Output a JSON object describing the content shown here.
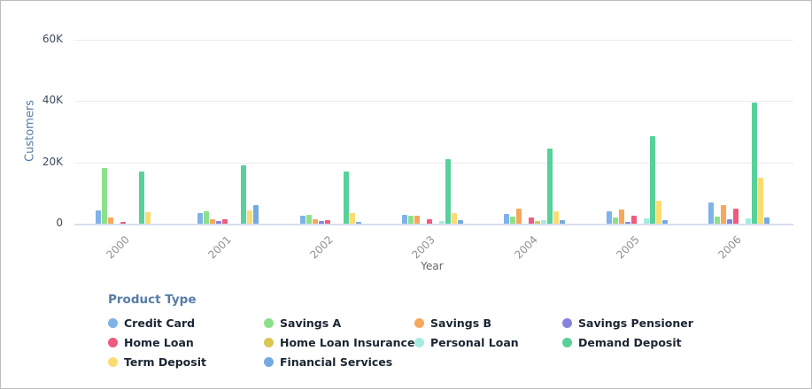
{
  "colors": {
    "grid": "#ececec",
    "baseline_axis": "#d9deee",
    "y_tick_text": "#3d4a5c",
    "x_tick_text": "#8d9197",
    "y_title_text": "#567ca8",
    "x_title_text": "#63676d",
    "legend_title_text": "#567ca8",
    "legend_label_text": "#1b2533",
    "frame_border": "#bdbdbd"
  },
  "chart_data": {
    "type": "bar",
    "title": "",
    "xlabel": "Year",
    "ylabel": "Customers",
    "categories": [
      "2000",
      "2001",
      "2002",
      "2003",
      "2004",
      "2005",
      "2006"
    ],
    "yticks": [
      {
        "label": "0",
        "value": 0
      },
      {
        "label": "20K",
        "value": 20000
      },
      {
        "label": "40K",
        "value": 40000
      },
      {
        "label": "60K",
        "value": 60000
      }
    ],
    "ylim": [
      0,
      60000
    ],
    "grid": true,
    "legend_title": "Product Type",
    "legend_position": "bottom",
    "series": [
      {
        "name": "Credit Card",
        "color": "#7db3e8",
        "values": [
          4200,
          3500,
          2700,
          3000,
          3300,
          3900,
          7000
        ]
      },
      {
        "name": "Savings A",
        "color": "#8ce08a",
        "values": [
          18000,
          3900,
          3000,
          2500,
          2300,
          1900,
          2200
        ]
      },
      {
        "name": "Savings B",
        "color": "#f7a75c",
        "values": [
          2000,
          1500,
          1300,
          2600,
          4900,
          4600,
          6100
        ]
      },
      {
        "name": "Savings Pensioner",
        "color": "#8583dd",
        "values": [
          0,
          1000,
          900,
          0,
          0,
          500,
          1300
        ]
      },
      {
        "name": "Home Loan",
        "color": "#ee5b7e",
        "values": [
          500,
          1300,
          1200,
          1400,
          2100,
          2700,
          4900
        ]
      },
      {
        "name": "Home Loan Insurance",
        "color": "#d8c754",
        "values": [
          0,
          0,
          0,
          0,
          800,
          0,
          0
        ]
      },
      {
        "name": "Personal Loan",
        "color": "#a5ecdf",
        "values": [
          0,
          0,
          0,
          800,
          1200,
          1600,
          1800
        ]
      },
      {
        "name": "Demand Deposit",
        "color": "#58d09a",
        "values": [
          17000,
          19000,
          17000,
          21000,
          24500,
          28500,
          39500
        ]
      },
      {
        "name": "Term Deposit",
        "color": "#fbdc71",
        "values": [
          3600,
          4300,
          3400,
          3500,
          4100,
          7500,
          15000
        ]
      },
      {
        "name": "Financial Services",
        "color": "#74a9e2",
        "values": [
          0,
          5900,
          600,
          1100,
          1100,
          1200,
          2000
        ]
      }
    ]
  }
}
